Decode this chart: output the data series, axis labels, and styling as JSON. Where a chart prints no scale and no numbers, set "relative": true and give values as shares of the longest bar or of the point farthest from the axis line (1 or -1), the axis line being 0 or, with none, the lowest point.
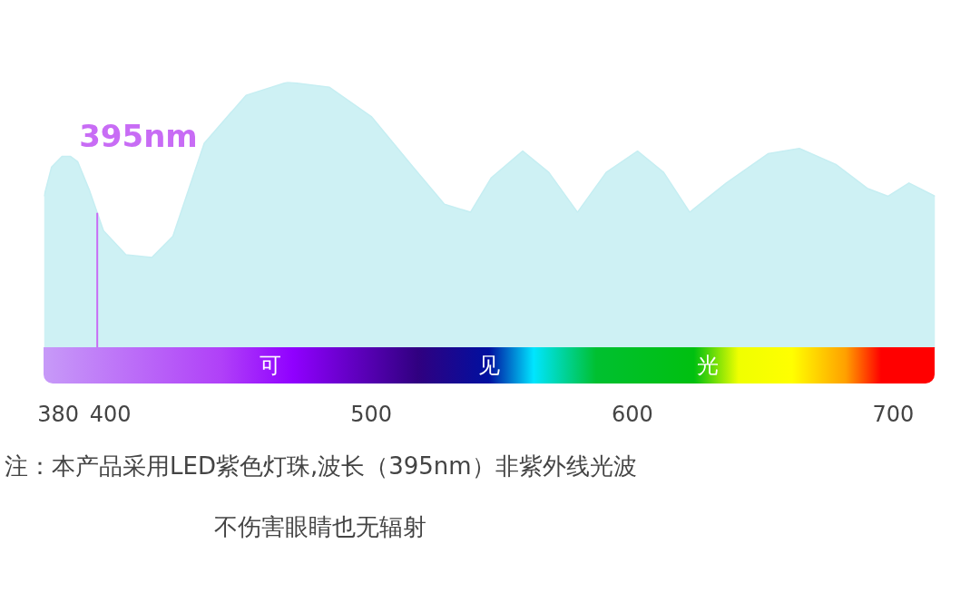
{
  "chart_data": {
    "type": "area",
    "relative": true,
    "x": [
      374.6,
      377.5,
      381.5,
      384.8,
      387.5,
      392.1,
      397.4,
      406,
      416,
      424,
      436,
      452,
      468,
      484,
      500,
      516,
      528,
      538,
      546,
      558,
      568,
      579,
      590,
      602,
      612,
      622,
      636,
      652,
      664,
      678,
      690,
      698,
      706,
      716
    ],
    "series": [
      {
        "color": "#c6eef2",
        "values": [
          0.57,
          0.68,
          0.72,
          0.72,
          0.7,
          0.59,
          0.44,
          0.35,
          0.34,
          0.42,
          0.77,
          0.95,
          1.0,
          0.98,
          0.87,
          0.68,
          0.54,
          0.51,
          0.64,
          0.74,
          0.66,
          0.51,
          0.66,
          0.74,
          0.66,
          0.51,
          0.62,
          0.73,
          0.75,
          0.69,
          0.6,
          0.57,
          0.62,
          0.57
        ]
      }
    ],
    "xlim": [
      374.6,
      716
    ],
    "xticks": [
      380,
      400,
      500,
      600,
      700
    ],
    "grid": false,
    "ref_lines": [
      {
        "axis": "x",
        "value": 395,
        "label": "395nm",
        "color": "#c86cf5"
      }
    ],
    "annotations": [
      "可",
      "见",
      "光",
      "注：本产品采用LED紫色灯珠,波长（395nm）非紫外线光波",
      "不伤害眼睛也无辐射"
    ]
  }
}
